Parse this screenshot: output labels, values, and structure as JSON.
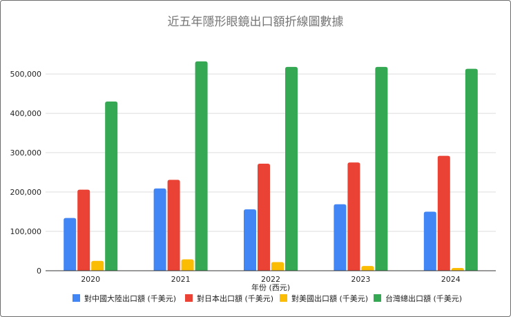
{
  "chart_data": {
    "type": "bar",
    "title": "近五年隱形眼鏡出口額折線圖數據",
    "xlabel": "年份 (西元)",
    "ylabel": "",
    "categories": [
      "2020",
      "2021",
      "2022",
      "2023",
      "2024"
    ],
    "ylim": [
      0,
      530000
    ],
    "yticks": [
      0,
      100000,
      200000,
      300000,
      400000,
      500000
    ],
    "ytick_labels": [
      "0",
      "100,000",
      "200,000",
      "300,000",
      "400,000",
      "500,000"
    ],
    "grid": true,
    "legend_position": "bottom",
    "series": [
      {
        "name": "對中國大陸出口額 (千美元)",
        "color": "#4285F4",
        "values": [
          134000,
          209000,
          156000,
          169000,
          150000
        ]
      },
      {
        "name": "對日本出口額 (千美元)",
        "color": "#EA4335",
        "values": [
          206000,
          231000,
          272000,
          275000,
          292000
        ]
      },
      {
        "name": "對美國出口額 (千美元)",
        "color": "#FBBC04",
        "values": [
          25000,
          29000,
          22000,
          12000,
          7000
        ]
      },
      {
        "name": "台灣總出口額 (千美元)",
        "color": "#34A853",
        "values": [
          430000,
          532000,
          518000,
          518000,
          513000
        ]
      }
    ]
  }
}
